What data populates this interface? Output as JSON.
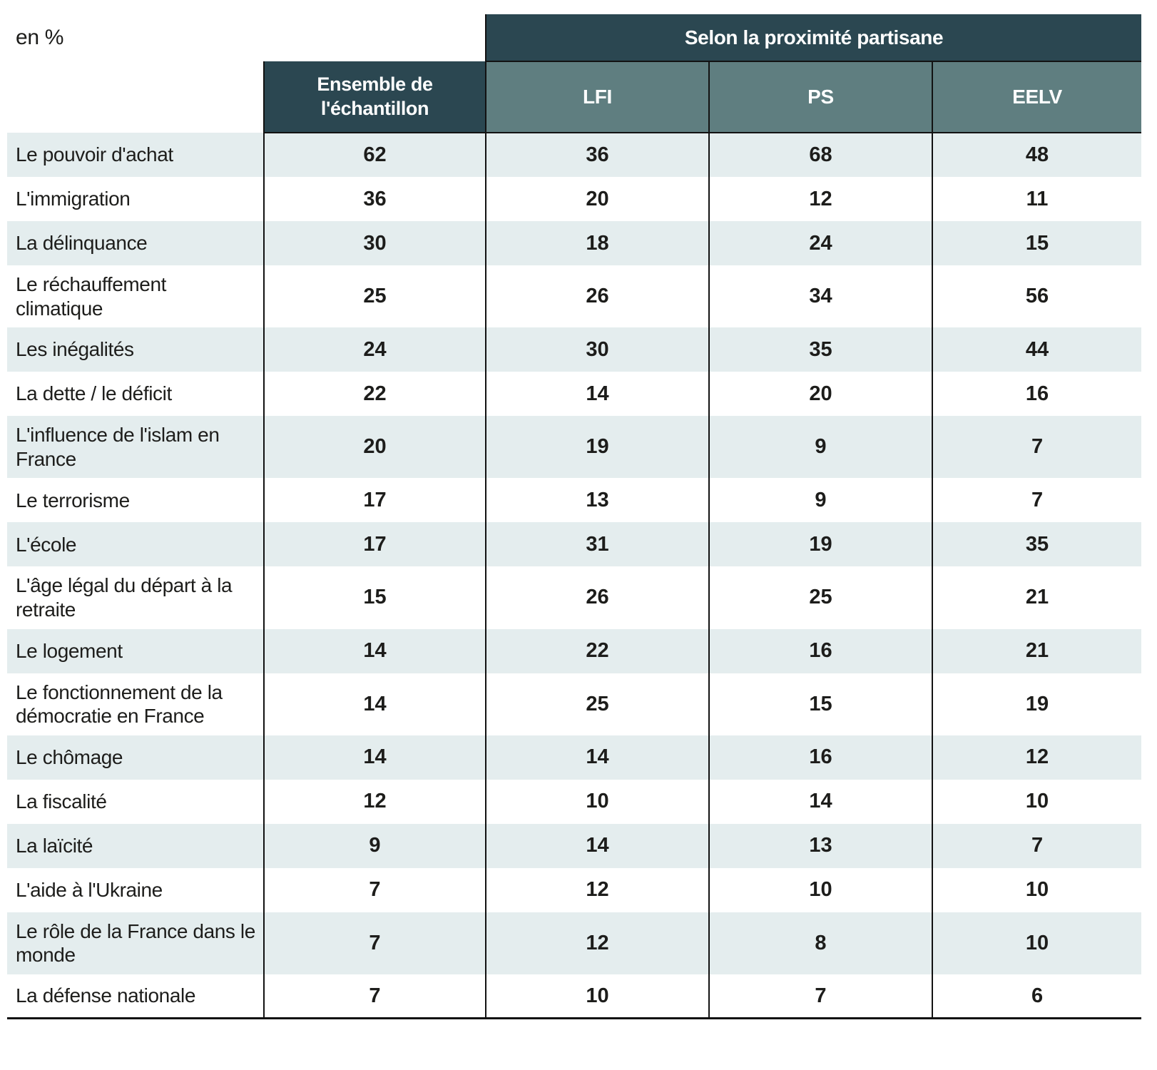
{
  "unit_label": "en %",
  "header": {
    "group_label": "Selon la proximité partisane",
    "ensemble_label": "Ensemble de l'échantillon",
    "party_columns": [
      "LFI",
      "PS",
      "EELV"
    ]
  },
  "colors": {
    "dark_header_bg": "#2b4751",
    "party_header_bg": "#5f7e80",
    "stripe_bg": "#e4edee",
    "border": "#121212",
    "text": "#1d1d1b"
  },
  "chart_data": {
    "type": "table",
    "unit": "en %",
    "column_group_label": "Selon la proximité partisane",
    "columns": [
      "Ensemble de l'échantillon",
      "LFI",
      "PS",
      "EELV"
    ],
    "rows": [
      {
        "label": "Le pouvoir d'achat",
        "values": [
          62,
          36,
          68,
          48
        ]
      },
      {
        "label": "L'immigration",
        "values": [
          36,
          20,
          12,
          11
        ]
      },
      {
        "label": "La délinquance",
        "values": [
          30,
          18,
          24,
          15
        ]
      },
      {
        "label": "Le réchauffement climatique",
        "values": [
          25,
          26,
          34,
          56
        ]
      },
      {
        "label": "Les inégalités",
        "values": [
          24,
          30,
          35,
          44
        ]
      },
      {
        "label": "La dette / le déficit",
        "values": [
          22,
          14,
          20,
          16
        ]
      },
      {
        "label": "L'influence de l'islam en France",
        "values": [
          20,
          19,
          9,
          7
        ]
      },
      {
        "label": "Le terrorisme",
        "values": [
          17,
          13,
          9,
          7
        ]
      },
      {
        "label": "L'école",
        "values": [
          17,
          31,
          19,
          35
        ]
      },
      {
        "label": "L'âge légal du départ à la retraite",
        "values": [
          15,
          26,
          25,
          21
        ]
      },
      {
        "label": "Le logement",
        "values": [
          14,
          22,
          16,
          21
        ]
      },
      {
        "label": "Le fonctionnement de la démocratie en France",
        "values": [
          14,
          25,
          15,
          19
        ]
      },
      {
        "label": "Le chômage",
        "values": [
          14,
          14,
          16,
          12
        ]
      },
      {
        "label": "La fiscalité",
        "values": [
          12,
          10,
          14,
          10
        ]
      },
      {
        "label": "La laïcité",
        "values": [
          9,
          14,
          13,
          7
        ]
      },
      {
        "label": "L'aide à l'Ukraine",
        "values": [
          7,
          12,
          10,
          10
        ]
      },
      {
        "label": "Le rôle de la France dans le monde",
        "values": [
          7,
          12,
          8,
          10
        ]
      },
      {
        "label": "La défense nationale",
        "values": [
          7,
          10,
          7,
          6
        ]
      }
    ]
  }
}
